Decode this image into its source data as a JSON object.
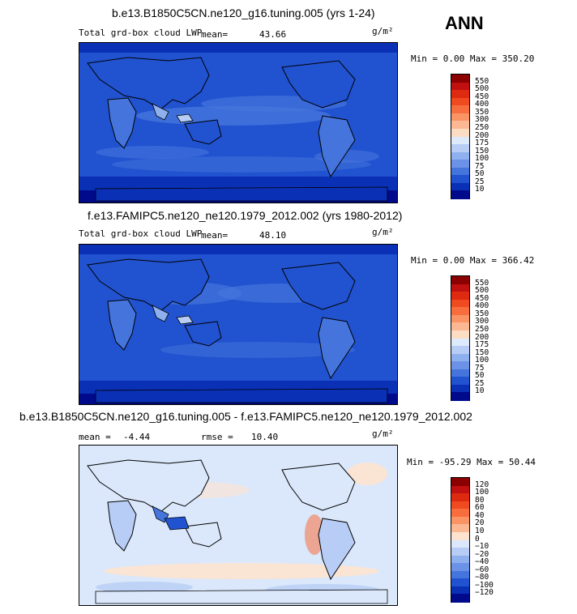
{
  "season": "ANN",
  "panels": [
    {
      "title": "b.e13.B1850C5CN.ne120_g16.tuning.005 (yrs 1-24)",
      "variable": "Total grd-box cloud LWP",
      "mean_label": "mean=",
      "mean_value": "43.66",
      "units": "g/m²",
      "minmax": "Min =   0.00 Max = 350.20",
      "colorbar_labels": [
        "550",
        "500",
        "450",
        "400",
        "350",
        "300",
        "250",
        "200",
        "175",
        "150",
        "100",
        "75",
        "50",
        "25",
        "10"
      ],
      "colorbar_colors": [
        "#8b0000",
        "#c01010",
        "#dd2a10",
        "#f04a20",
        "#f86d3d",
        "#fb9465",
        "#fcb893",
        "#fddcc4",
        "#ddeafb",
        "#b7cdf5",
        "#8fb0ee",
        "#6b92e6",
        "#4575dc",
        "#2152cf",
        "#0a30b5",
        "#000a8a"
      ]
    },
    {
      "title": "f.e13.FAMIPC5.ne120_ne120.1979_2012.002 (yrs 1980-2012)",
      "variable": "Total grd-box cloud LWP",
      "mean_label": "mean=",
      "mean_value": "48.10",
      "units": "g/m²",
      "minmax": "Min =   0.00 Max = 366.42",
      "colorbar_labels": [
        "550",
        "500",
        "450",
        "400",
        "350",
        "300",
        "250",
        "200",
        "175",
        "150",
        "100",
        "75",
        "50",
        "25",
        "10"
      ],
      "colorbar_colors": [
        "#8b0000",
        "#c01010",
        "#dd2a10",
        "#f04a20",
        "#f86d3d",
        "#fb9465",
        "#fcb893",
        "#fddcc4",
        "#ddeafb",
        "#b7cdf5",
        "#8fb0ee",
        "#6b92e6",
        "#4575dc",
        "#2152cf",
        "#0a30b5",
        "#000a8a"
      ]
    },
    {
      "title": "b.e13.B1850C5CN.ne120_g16.tuning.005 - f.e13.FAMIPC5.ne120_ne120.1979_2012.002",
      "mean_label": "mean =",
      "mean_value": "-4.44",
      "rmse_label": "rmse =",
      "rmse_value": "10.40",
      "units": "g/m²",
      "minmax": "Min = -95.29 Max =  50.44",
      "colorbar_labels": [
        "120",
        "100",
        "80",
        "60",
        "40",
        "20",
        "10",
        "0",
        "−10",
        "−20",
        "−40",
        "−60",
        "−80",
        "−100",
        "−120"
      ],
      "colorbar_colors": [
        "#8b0000",
        "#c01010",
        "#dd2a10",
        "#f04a20",
        "#f86d3d",
        "#fb9465",
        "#fcb893",
        "#fde3cf",
        "#dbe8fb",
        "#b7cdf5",
        "#8fb0ee",
        "#6b92e6",
        "#4575dc",
        "#2152cf",
        "#0a30b5",
        "#000a8a"
      ]
    }
  ],
  "chart_data": [
    {
      "type": "heatmap",
      "title": "b.e13.B1850C5CN.ne120_g16.tuning.005 (yrs 1-24)",
      "variable": "Total grd-box cloud LWP",
      "units": "g/m2",
      "mean": 43.66,
      "min": 0.0,
      "max": 350.2,
      "levels": [
        10,
        25,
        50,
        75,
        100,
        150,
        175,
        200,
        250,
        300,
        350,
        400,
        450,
        500,
        550
      ]
    },
    {
      "type": "heatmap",
      "title": "f.e13.FAMIPC5.ne120_ne120.1979_2012.002 (yrs 1980-2012)",
      "variable": "Total grd-box cloud LWP",
      "units": "g/m2",
      "mean": 48.1,
      "min": 0.0,
      "max": 366.42,
      "levels": [
        10,
        25,
        50,
        75,
        100,
        150,
        175,
        200,
        250,
        300,
        350,
        400,
        450,
        500,
        550
      ]
    },
    {
      "type": "heatmap",
      "title": "b.e13.B1850C5CN.ne120_g16.tuning.005 - f.e13.FAMIPC5.ne120_ne120.1979_2012.002",
      "units": "g/m2",
      "mean": -4.44,
      "rmse": 10.4,
      "min": -95.29,
      "max": 50.44,
      "levels": [
        -120,
        -100,
        -80,
        -60,
        -40,
        -20,
        -10,
        0,
        10,
        20,
        40,
        60,
        80,
        100,
        120
      ]
    }
  ]
}
